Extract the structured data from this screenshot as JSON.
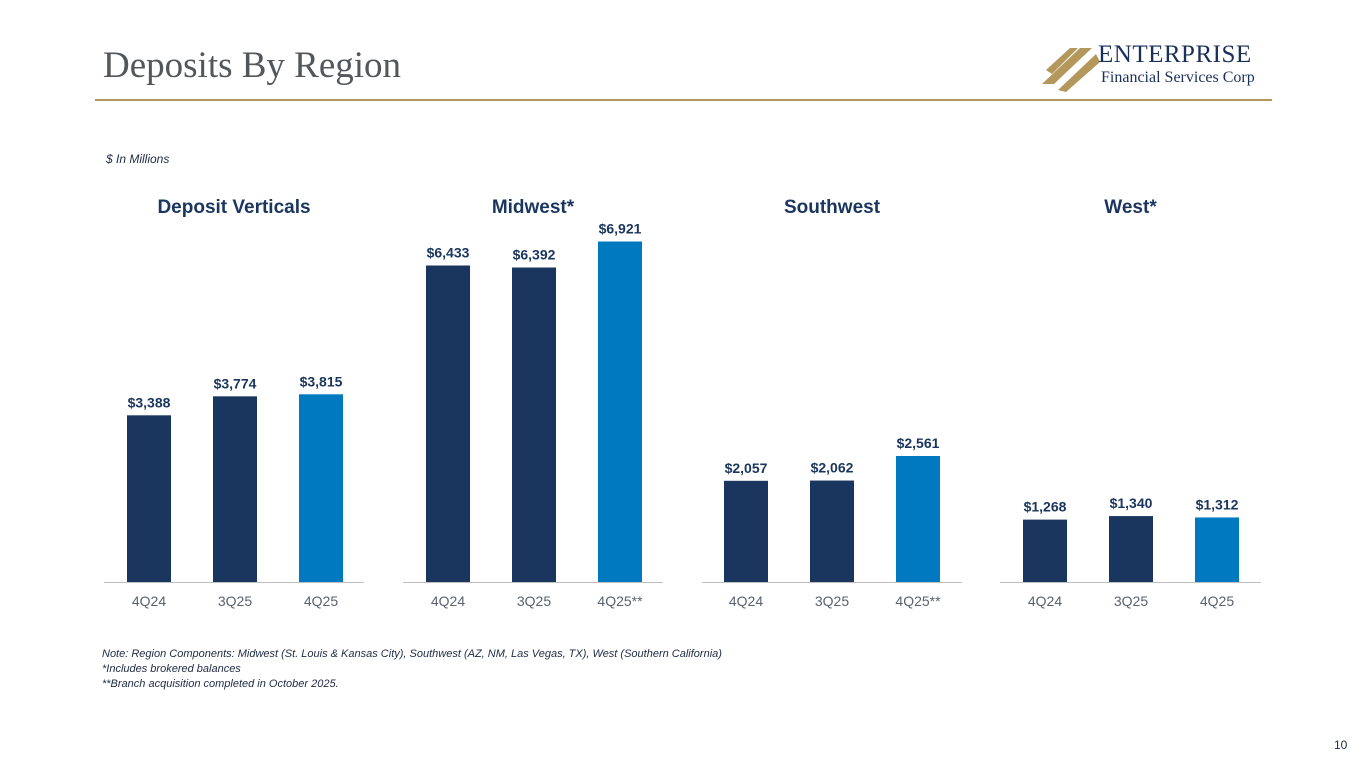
{
  "title": "Deposits By Region",
  "brand": {
    "name": "ENTERPRISE",
    "subtitle": "Financial Services Corp"
  },
  "units_note": "$ In Millions",
  "colors": {
    "prior": "#1a355e",
    "current": "#0079c1",
    "title": "#53565a",
    "accent": "#b4975a",
    "text": "#1f2a44",
    "axis": "#bfbfbf"
  },
  "chart_data": [
    {
      "type": "bar",
      "title": "Deposit Verticals",
      "categories": [
        "4Q24",
        "3Q25",
        "4Q25"
      ],
      "values": [
        3388,
        3774,
        3815
      ],
      "labels": [
        "$3,388",
        "$3,774",
        "$3,815"
      ],
      "highlight_index": 2,
      "ylim": [
        0,
        7500
      ]
    },
    {
      "type": "bar",
      "title": "Midwest*",
      "categories": [
        "4Q24",
        "3Q25",
        "4Q25**"
      ],
      "values": [
        6433,
        6392,
        6921
      ],
      "labels": [
        "$6,433",
        "$6,392",
        "$6,921"
      ],
      "highlight_index": 2,
      "ylim": [
        0,
        7500
      ]
    },
    {
      "type": "bar",
      "title": "Southwest",
      "categories": [
        "4Q24",
        "3Q25",
        "4Q25**"
      ],
      "values": [
        2057,
        2062,
        2561
      ],
      "labels": [
        "$2,057",
        "$2,062",
        "$2,561"
      ],
      "highlight_index": 2,
      "ylim": [
        0,
        7500
      ]
    },
    {
      "type": "bar",
      "title": "West*",
      "categories": [
        "4Q24",
        "3Q25",
        "4Q25"
      ],
      "values": [
        1268,
        1340,
        1312
      ],
      "labels": [
        "$1,268",
        "$1,340",
        "$1,312"
      ],
      "highlight_index": 2,
      "ylim": [
        0,
        7500
      ]
    }
  ],
  "notes": [
    "Note: Region Components: Midwest (St. Louis & Kansas City), Southwest (AZ, NM, Las Vegas, TX), West (Southern California)",
    "*Includes brokered balances",
    "**Branch acquisition completed in October 2025."
  ],
  "page_number": "10"
}
